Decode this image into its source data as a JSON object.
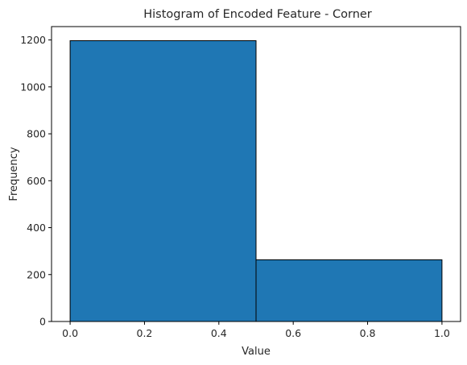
{
  "chart_data": {
    "type": "bar",
    "title": "Histogram of Encoded Feature - Corner",
    "xlabel": "Value",
    "ylabel": "Frequency",
    "bins": [
      {
        "x0": 0.0,
        "x1": 0.5,
        "value": 1197
      },
      {
        "x0": 0.5,
        "x1": 1.0,
        "value": 263
      }
    ],
    "xlim": [
      -0.05,
      1.05
    ],
    "ylim": [
      0,
      1257
    ],
    "xticks": [
      0.0,
      0.2,
      0.4,
      0.6,
      0.8,
      1.0
    ],
    "xtick_labels": [
      "0.0",
      "0.2",
      "0.4",
      "0.6",
      "0.8",
      "1.0"
    ],
    "yticks": [
      0,
      200,
      400,
      600,
      800,
      1000,
      1200
    ],
    "ytick_labels": [
      "0",
      "200",
      "400",
      "600",
      "800",
      "1000",
      "1200"
    ],
    "grid": false,
    "bar_color": "#1f77b4",
    "edge_color": "#000000"
  }
}
